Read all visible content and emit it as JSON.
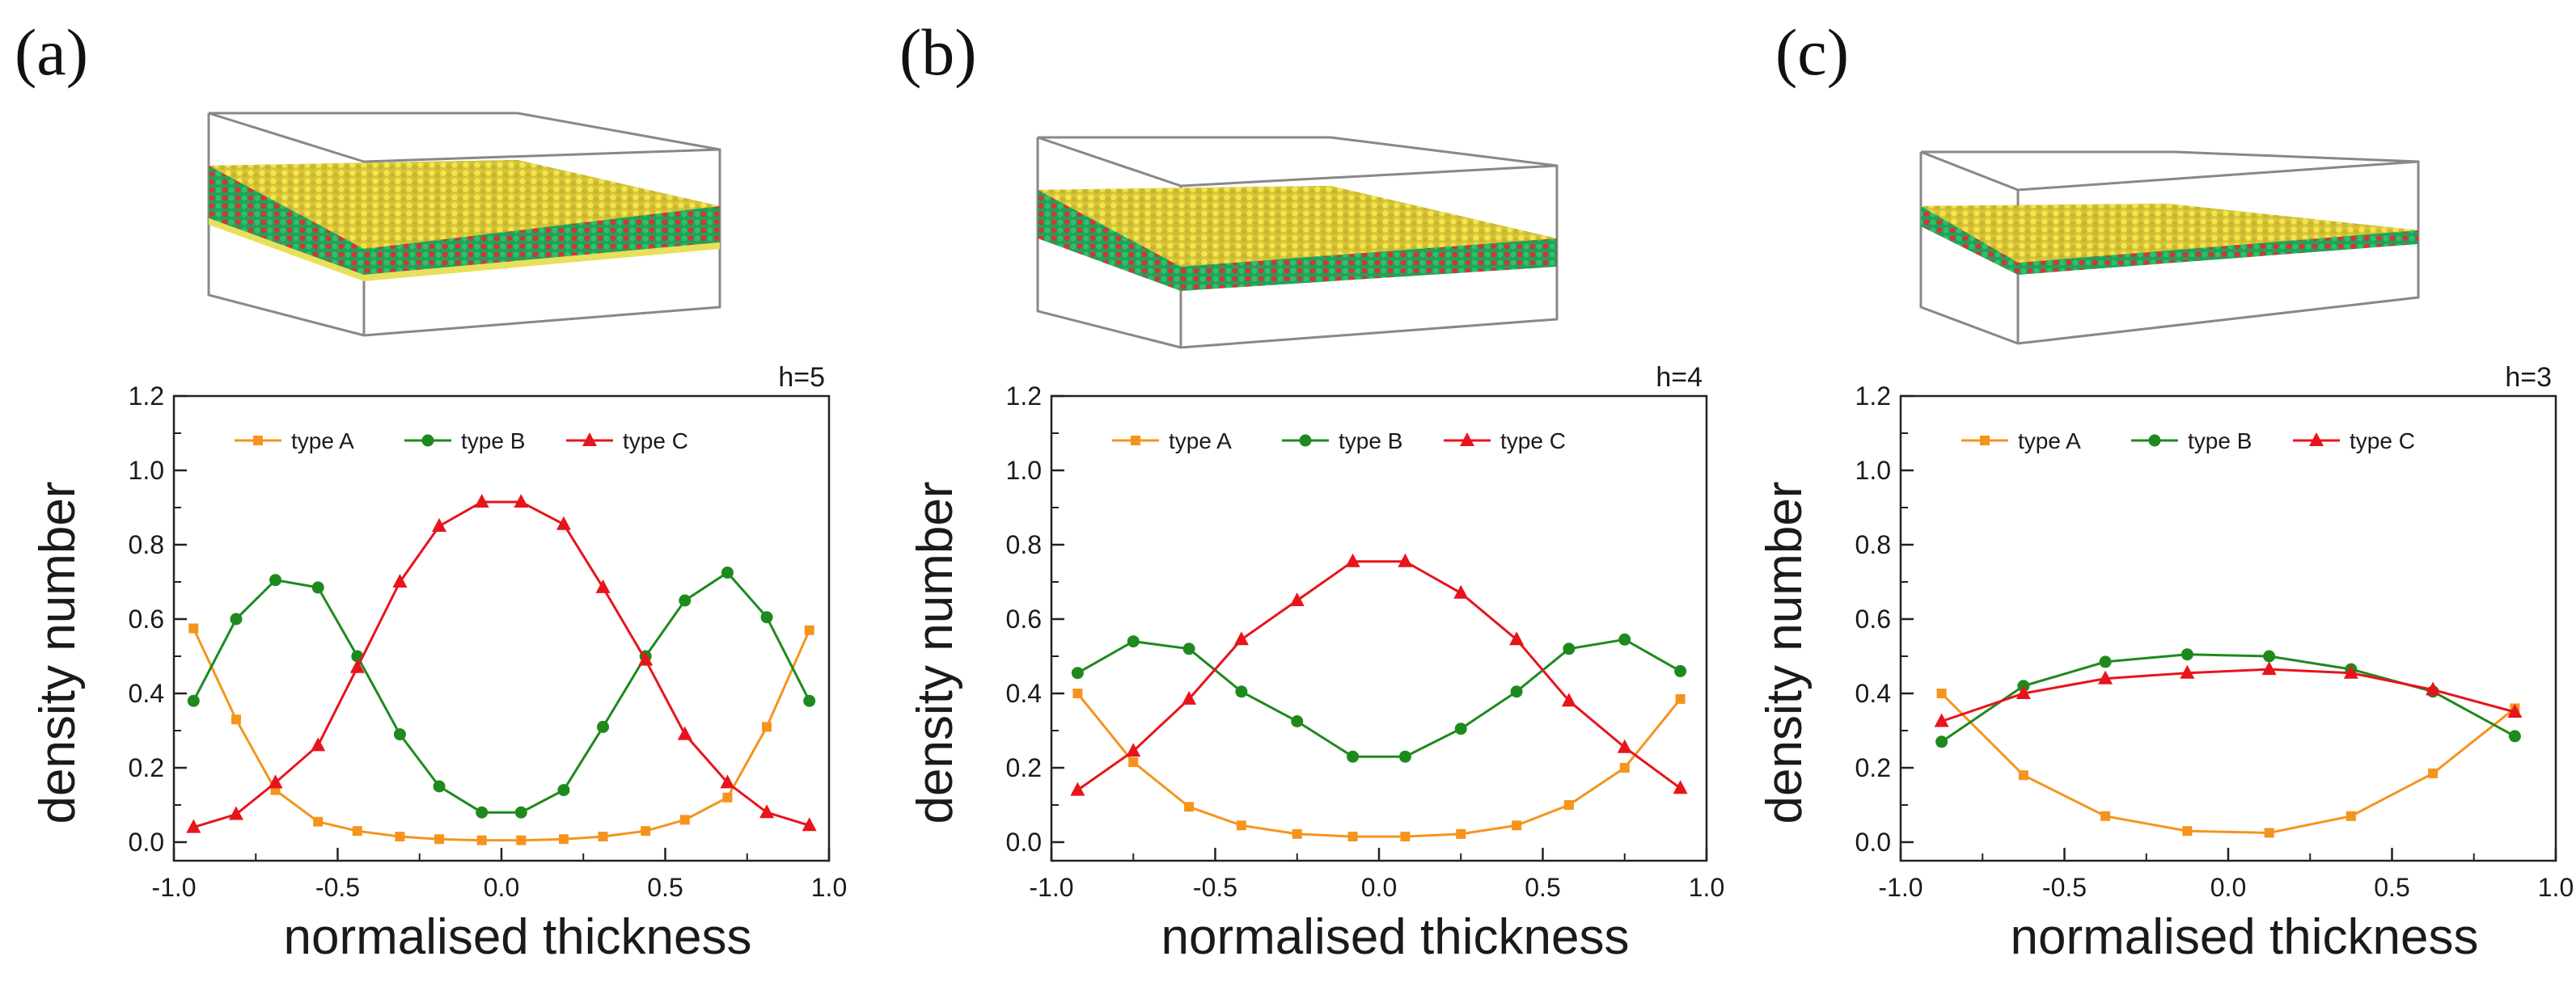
{
  "panels": [
    {
      "label": "(a)",
      "h_label": "h=5",
      "illustration": "film-slab-thick"
    },
    {
      "label": "(b)",
      "h_label": "h=4",
      "illustration": "film-slab-medium"
    },
    {
      "label": "(c)",
      "h_label": "h=3",
      "illustration": "film-slab-thin"
    }
  ],
  "colors": {
    "type_a": "#f5941d",
    "type_b": "#1e8a1e",
    "type_c": "#e8141b"
  },
  "chart_data": [
    {
      "type": "line",
      "title": "h=5",
      "xlabel": "normalised thickness",
      "ylabel": "density number",
      "xlim": [
        -1.0,
        1.0
      ],
      "ylim": [
        -0.05,
        1.2
      ],
      "xticks": [
        "-1.0",
        "-0.5",
        "0.0",
        "0.5",
        "1.0"
      ],
      "yticks": [
        "0.0",
        "0.2",
        "0.4",
        "0.6",
        "0.8",
        "1.0",
        "1.2"
      ],
      "legend": "top",
      "grid": false,
      "series": [
        {
          "name": "type A",
          "marker": "square",
          "x": [
            -0.94,
            -0.81,
            -0.69,
            -0.56,
            -0.44,
            -0.31,
            -0.19,
            -0.06,
            0.06,
            0.19,
            0.31,
            0.44,
            0.56,
            0.69,
            0.81,
            0.94
          ],
          "y": [
            0.575,
            0.33,
            0.14,
            0.055,
            0.03,
            0.015,
            0.008,
            0.005,
            0.005,
            0.008,
            0.015,
            0.03,
            0.06,
            0.12,
            0.31,
            0.57
          ]
        },
        {
          "name": "type B",
          "marker": "circle",
          "x": [
            -0.94,
            -0.81,
            -0.69,
            -0.56,
            -0.44,
            -0.31,
            -0.19,
            -0.06,
            0.06,
            0.19,
            0.31,
            0.44,
            0.56,
            0.69,
            0.81,
            0.94
          ],
          "y": [
            0.38,
            0.6,
            0.705,
            0.685,
            0.5,
            0.29,
            0.15,
            0.08,
            0.08,
            0.14,
            0.31,
            0.5,
            0.65,
            0.725,
            0.605,
            0.38
          ]
        },
        {
          "name": "type C",
          "marker": "triangle",
          "x": [
            -0.94,
            -0.81,
            -0.69,
            -0.56,
            -0.44,
            -0.31,
            -0.19,
            -0.06,
            0.06,
            0.19,
            0.31,
            0.44,
            0.56,
            0.69,
            0.81,
            0.94
          ],
          "y": [
            0.04,
            0.075,
            0.16,
            0.26,
            0.47,
            0.7,
            0.85,
            0.915,
            0.915,
            0.855,
            0.685,
            0.49,
            0.29,
            0.16,
            0.08,
            0.045
          ]
        }
      ]
    },
    {
      "type": "line",
      "title": "h=4",
      "xlabel": "normalised thickness",
      "ylabel": "density number",
      "xlim": [
        -1.0,
        1.0
      ],
      "ylim": [
        -0.05,
        1.2
      ],
      "xticks": [
        "-1.0",
        "-0.5",
        "0.0",
        "0.5",
        "1.0"
      ],
      "yticks": [
        "0.0",
        "0.2",
        "0.4",
        "0.6",
        "0.8",
        "1.0",
        "1.2"
      ],
      "legend": "top",
      "grid": false,
      "series": [
        {
          "name": "type A",
          "marker": "square",
          "x": [
            -0.92,
            -0.75,
            -0.58,
            -0.42,
            -0.25,
            -0.08,
            0.08,
            0.25,
            0.42,
            0.58,
            0.75,
            0.92
          ],
          "y": [
            0.4,
            0.215,
            0.095,
            0.045,
            0.022,
            0.015,
            0.015,
            0.022,
            0.045,
            0.1,
            0.2,
            0.385
          ]
        },
        {
          "name": "type B",
          "marker": "circle",
          "x": [
            -0.92,
            -0.75,
            -0.58,
            -0.42,
            -0.25,
            -0.08,
            0.08,
            0.25,
            0.42,
            0.58,
            0.75,
            0.92
          ],
          "y": [
            0.455,
            0.54,
            0.52,
            0.405,
            0.325,
            0.23,
            0.23,
            0.305,
            0.405,
            0.52,
            0.545,
            0.46
          ]
        },
        {
          "name": "type C",
          "marker": "triangle",
          "x": [
            -0.92,
            -0.75,
            -0.58,
            -0.42,
            -0.25,
            -0.08,
            0.08,
            0.25,
            0.42,
            0.58,
            0.75,
            0.92
          ],
          "y": [
            0.14,
            0.245,
            0.385,
            0.545,
            0.65,
            0.755,
            0.755,
            0.67,
            0.545,
            0.38,
            0.255,
            0.145
          ]
        }
      ]
    },
    {
      "type": "line",
      "title": "h=3",
      "xlabel": "normalised thickness",
      "ylabel": "density number",
      "xlim": [
        -1.0,
        1.0
      ],
      "ylim": [
        -0.05,
        1.2
      ],
      "xticks": [
        "-1.0",
        "-0.5",
        "0.0",
        "0.5",
        "1.0"
      ],
      "yticks": [
        "0.0",
        "0.2",
        "0.4",
        "0.6",
        "0.8",
        "1.0",
        "1.2"
      ],
      "legend": "top",
      "grid": false,
      "series": [
        {
          "name": "type A",
          "marker": "square",
          "x": [
            -0.875,
            -0.625,
            -0.375,
            -0.125,
            0.125,
            0.375,
            0.625,
            0.875
          ],
          "y": [
            0.4,
            0.18,
            0.07,
            0.03,
            0.025,
            0.07,
            0.185,
            0.36
          ]
        },
        {
          "name": "type B",
          "marker": "circle",
          "x": [
            -0.875,
            -0.625,
            -0.375,
            -0.125,
            0.125,
            0.375,
            0.625,
            0.875
          ],
          "y": [
            0.27,
            0.42,
            0.485,
            0.505,
            0.5,
            0.465,
            0.405,
            0.285
          ]
        },
        {
          "name": "type C",
          "marker": "triangle",
          "x": [
            -0.875,
            -0.625,
            -0.375,
            -0.125,
            0.125,
            0.375,
            0.625,
            0.875
          ],
          "y": [
            0.325,
            0.4,
            0.44,
            0.455,
            0.465,
            0.455,
            0.41,
            0.35
          ]
        }
      ]
    }
  ]
}
